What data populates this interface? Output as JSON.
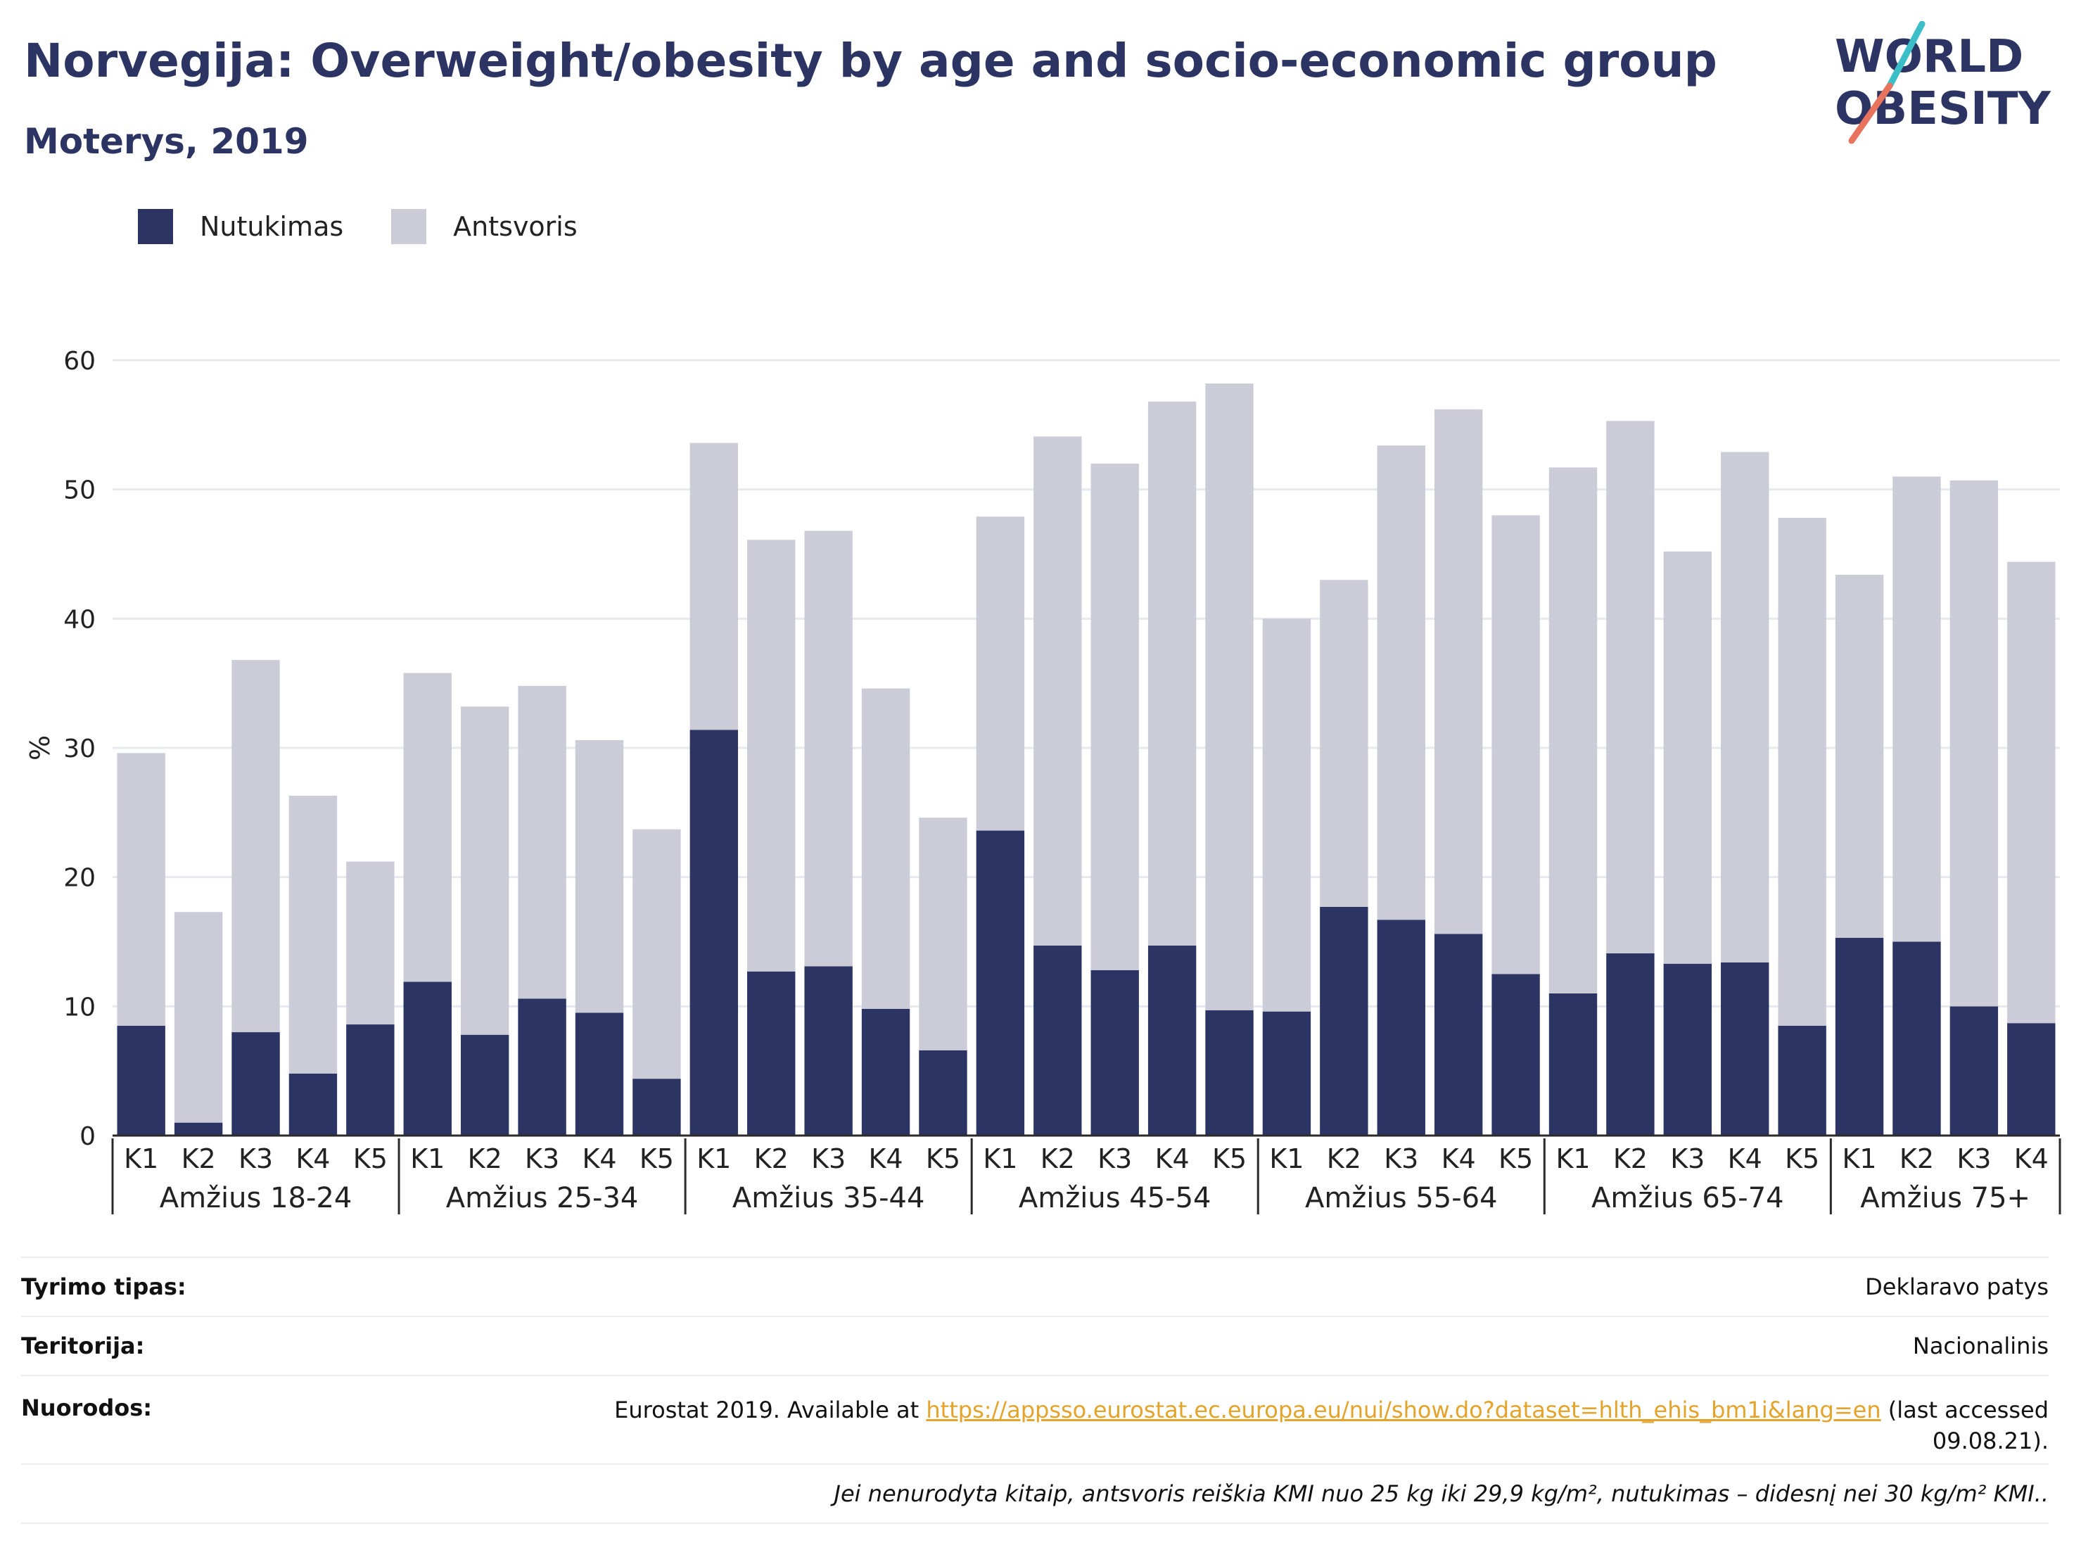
{
  "header": {
    "title": "Norvegija: Overweight/obesity by age and socio-economic group",
    "subtitle": "Moterys, 2019"
  },
  "logo": {
    "line1": "WORLD",
    "line2": "OBESITY",
    "slash_colors": [
      "#3bbec8",
      "#e8735f"
    ]
  },
  "legend": {
    "items": [
      {
        "label": "Nutukimas",
        "color": "#2b3462"
      },
      {
        "label": "Antsvoris",
        "color": "#cbccd8"
      }
    ]
  },
  "chart_data": {
    "type": "bar",
    "stacked": true,
    "ylabel": "%",
    "ylim": [
      0,
      60
    ],
    "yticks": [
      0,
      10,
      20,
      30,
      40,
      50,
      60
    ],
    "grid": true,
    "legend_position": "top-left",
    "groups": [
      {
        "label": "Amžius 18-24",
        "categories": [
          "K1",
          "K2",
          "K3",
          "K4",
          "K5"
        ]
      },
      {
        "label": "Amžius 25-34",
        "categories": [
          "K1",
          "K2",
          "K3",
          "K4",
          "K5"
        ]
      },
      {
        "label": "Amžius 35-44",
        "categories": [
          "K1",
          "K2",
          "K3",
          "K4",
          "K5"
        ]
      },
      {
        "label": "Amžius 45-54",
        "categories": [
          "K1",
          "K2",
          "K3",
          "K4",
          "K5"
        ]
      },
      {
        "label": "Amžius 55-64",
        "categories": [
          "K1",
          "K2",
          "K3",
          "K4",
          "K5"
        ]
      },
      {
        "label": "Amžius 65-74",
        "categories": [
          "K1",
          "K2",
          "K3",
          "K4",
          "K5"
        ]
      },
      {
        "label": "Amžius 75+",
        "categories": [
          "K1",
          "K2",
          "K3",
          "K4"
        ]
      }
    ],
    "series": [
      {
        "name": "Nutukimas",
        "color": "#2b3462",
        "values": [
          8.5,
          1.0,
          8.0,
          4.8,
          8.6,
          11.9,
          7.8,
          10.6,
          9.5,
          4.4,
          31.4,
          12.7,
          13.1,
          9.8,
          6.6,
          23.6,
          14.7,
          12.8,
          14.7,
          9.7,
          9.6,
          17.7,
          16.7,
          15.6,
          12.5,
          11.0,
          14.1,
          13.3,
          13.4,
          8.5,
          15.3,
          15.0,
          10.0,
          8.7
        ]
      },
      {
        "name": "Antsvoris",
        "color": "#cbccd8",
        "values": [
          21.1,
          16.3,
          28.8,
          21.5,
          12.6,
          23.9,
          25.4,
          24.2,
          21.1,
          19.3,
          22.2,
          33.4,
          33.7,
          24.8,
          18.0,
          24.3,
          39.4,
          39.2,
          42.1,
          48.5,
          30.4,
          25.3,
          36.7,
          40.6,
          35.5,
          40.7,
          41.2,
          31.9,
          39.5,
          39.3,
          28.1,
          36.0,
          40.7,
          35.7
        ]
      }
    ]
  },
  "meta": [
    {
      "key": "Tyrimo tipas:",
      "value": "Deklaravo patys"
    },
    {
      "key": "Teritorija:",
      "value": "Nacionalinis"
    },
    {
      "key": "Nuorodos:",
      "value_prefix": "Eurostat 2019. Available at",
      "link": "https://appsso.eurostat.ec.europa.eu/nui/show.do?dataset=hlth_ehis_bm1i&lang=en",
      "value_suffix": "(last accessed",
      "value_suffix2": "09.08.21)."
    }
  ],
  "note": "Jei nenurodyta kitaip, antsvoris reiškia KMI nuo 25 kg iki 29,9 kg/m², nutukimas – didesnį nei 30 kg/m² KMI.."
}
